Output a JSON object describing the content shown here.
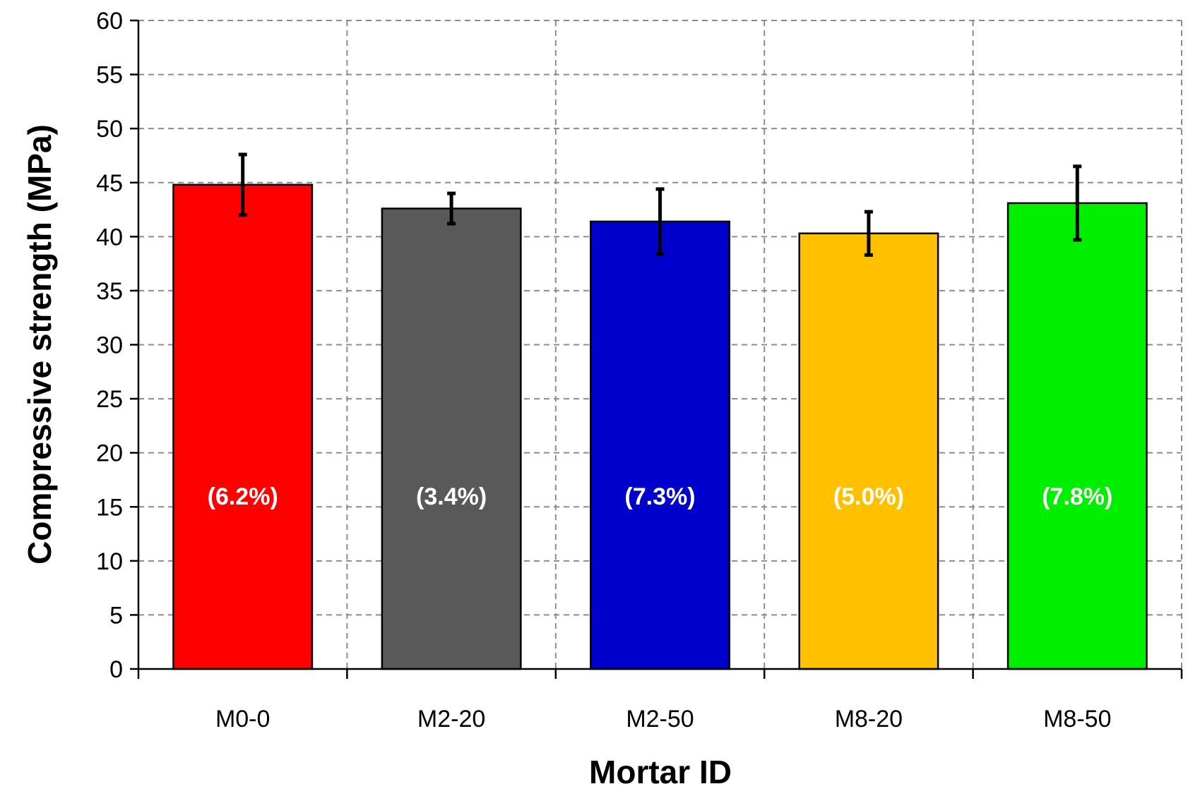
{
  "chart_data": {
    "type": "bar",
    "title": "",
    "xlabel": "Mortar ID",
    "ylabel": "Compressive strength  (MPa)",
    "ylim": [
      0,
      60
    ],
    "yticks": [
      0,
      5,
      10,
      15,
      20,
      25,
      30,
      35,
      40,
      45,
      50,
      55,
      60
    ],
    "yticklabels": [
      "0",
      "5",
      "10",
      "15",
      "20",
      "25",
      "30",
      "35",
      "40",
      "45",
      "50",
      "55",
      "60"
    ],
    "grid": true,
    "categories": [
      "M0-0",
      "M2-20",
      "M2-50",
      "M8-20",
      "M8-50"
    ],
    "values": [
      44.8,
      42.6,
      41.4,
      40.3,
      43.1
    ],
    "errors": [
      2.8,
      1.4,
      3.0,
      2.0,
      3.4
    ],
    "bar_labels": [
      "(6.2%)",
      "(3.4%)",
      "(7.3%)",
      "(5.0%)",
      "(7.8%)"
    ],
    "bar_label_y": 16,
    "colors": [
      "#ff0000",
      "#595959",
      "#0000cc",
      "#ffc000",
      "#00ee00"
    ]
  }
}
